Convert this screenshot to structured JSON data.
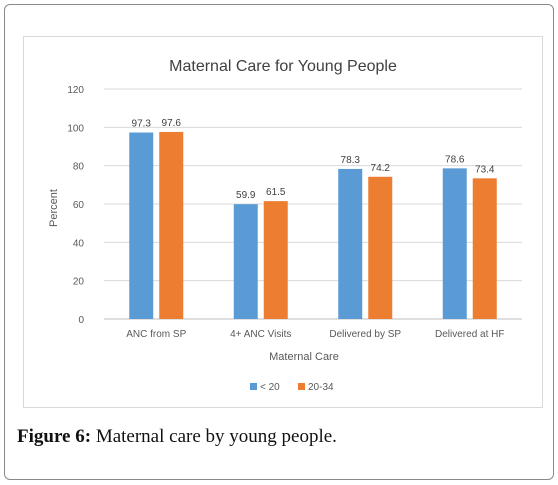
{
  "chart_data": {
    "type": "bar",
    "title": "Maternal Care for Young People",
    "xlabel": "Maternal Care",
    "ylabel": "Percent",
    "ylim": [
      0,
      120
    ],
    "yticks": [
      "0",
      "20",
      "40",
      "60",
      "80",
      "100",
      "120"
    ],
    "categories": [
      "ANC from SP",
      "4+ ANC Visits",
      "Delivered by SP",
      "Delivered at HF"
    ],
    "series": [
      {
        "name": "< 20",
        "values": [
          97.3,
          59.9,
          78.3,
          78.6
        ],
        "color": "#5b9bd5"
      },
      {
        "name": "20-34",
        "values": [
          97.6,
          61.5,
          74.2,
          73.4
        ],
        "color": "#ed7d31"
      }
    ],
    "legend_position": "bottom",
    "grid": true
  },
  "caption": {
    "label": "Figure 6:",
    "text": " Maternal care by young people."
  }
}
